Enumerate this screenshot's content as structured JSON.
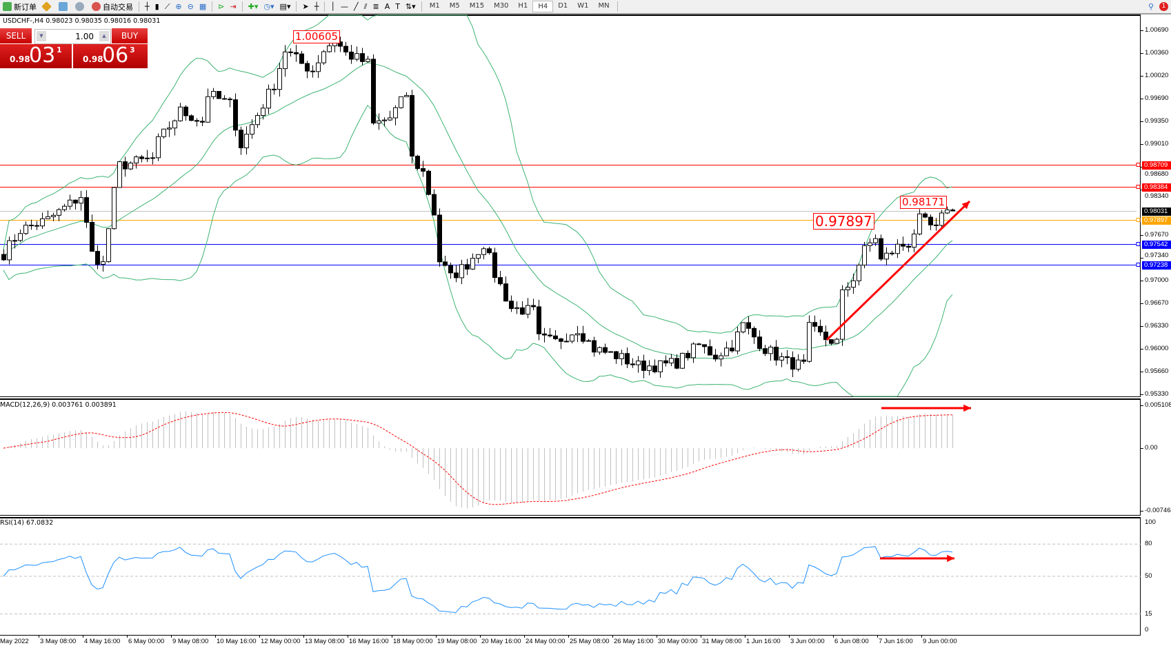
{
  "toolbar": {
    "new_order": "新订单",
    "auto_trading": "自动交易",
    "timeframes": [
      "M1",
      "M5",
      "M15",
      "M30",
      "H1",
      "H4",
      "D1",
      "W1",
      "MN"
    ],
    "active_timeframe": "H4",
    "notification_count": "1"
  },
  "chart": {
    "info_line": "USDCHF-,H4  0.98023 0.98035 0.98016 0.98031",
    "price_axis": [
      "1.00690",
      "1.00360",
      "1.00020",
      "0.99690",
      "0.99350",
      "0.99010",
      "0.98680",
      "0.98340",
      "0.97670",
      "0.97340",
      "0.97000",
      "0.96670",
      "0.96330",
      "0.96000",
      "0.95660",
      "0.95330"
    ],
    "price_range": [
      0.9533,
      1.0069
    ],
    "levels": [
      {
        "price": "0.98709",
        "color": "#ff0000"
      },
      {
        "price": "0.98384",
        "color": "#ff0000"
      },
      {
        "price": "0.98031",
        "color": "#000000",
        "line_color": "#c0c0c0"
      },
      {
        "price": "0.97897",
        "color": "#ffa500"
      },
      {
        "price": "0.97542",
        "color": "#0000ff"
      },
      {
        "price": "0.97238",
        "color": "#0000ff"
      }
    ],
    "price_labels": {
      "high": "1.00605",
      "recent_high": "0.98171",
      "marked": "0.97897"
    },
    "close_path": [
      [
        0,
        0.974
      ],
      [
        3,
        0.9775
      ],
      [
        8,
        0.979
      ],
      [
        14,
        0.9825
      ],
      [
        16,
        0.974
      ],
      [
        18,
        0.9725
      ],
      [
        20,
        0.983
      ],
      [
        21,
        0.987
      ],
      [
        27,
        0.988
      ],
      [
        28,
        0.9905
      ],
      [
        32,
        0.995
      ],
      [
        36,
        0.9935
      ],
      [
        37,
        0.9975
      ],
      [
        41,
        0.996
      ],
      [
        43,
        0.99
      ],
      [
        46,
        0.9945
      ],
      [
        49,
        0.999
      ],
      [
        51,
        1.004
      ],
      [
        54,
        1.002
      ],
      [
        56,
        1.001
      ],
      [
        58,
        1.004
      ],
      [
        60,
        1.0055
      ],
      [
        62,
        1.0035
      ],
      [
        66,
        1.002
      ],
      [
        67,
        0.993
      ],
      [
        70,
        0.994
      ],
      [
        73,
        0.9975
      ],
      [
        74,
        0.988
      ],
      [
        76,
        0.986
      ],
      [
        78,
        0.98
      ],
      [
        79,
        0.973
      ],
      [
        81,
        0.9705
      ],
      [
        84,
        0.9725
      ],
      [
        87,
        0.9755
      ],
      [
        89,
        0.971
      ],
      [
        92,
        0.966
      ],
      [
        96,
        0.9655
      ],
      [
        97,
        0.9615
      ],
      [
        100,
        0.961
      ],
      [
        104,
        0.963
      ],
      [
        107,
        0.96
      ],
      [
        111,
        0.959
      ],
      [
        115,
        0.9575
      ],
      [
        119,
        0.9575
      ],
      [
        122,
        0.958
      ],
      [
        126,
        0.9605
      ],
      [
        129,
        0.959
      ],
      [
        132,
        0.9605
      ],
      [
        134,
        0.9635
      ],
      [
        138,
        0.96
      ],
      [
        142,
        0.958
      ],
      [
        145,
        0.9575
      ],
      [
        146,
        0.963
      ],
      [
        149,
        0.9615
      ],
      [
        151,
        0.961
      ],
      [
        152,
        0.968
      ],
      [
        154,
        0.9705
      ],
      [
        156,
        0.9745
      ],
      [
        158,
        0.9765
      ],
      [
        159,
        0.973
      ],
      [
        162,
        0.975
      ],
      [
        164,
        0.9755
      ],
      [
        166,
        0.979
      ],
      [
        169,
        0.9775
      ],
      [
        171,
        0.981
      ],
      [
        172,
        0.98031
      ]
    ],
    "band_color": "#3cb371",
    "arrow_color": "#ff0000"
  },
  "macd": {
    "label": "MACD(12,26,9) 0.003761 0.003891",
    "axis": [
      "0.005108",
      "0.00",
      "-0.007464"
    ],
    "range": [
      -0.007464,
      0.005108
    ],
    "histogram_color": "#c0c0c0",
    "signal_color": "#ff0000"
  },
  "rsi": {
    "label": "RSI(14) 67.0832",
    "axis": [
      "100",
      "80",
      "50",
      "15",
      "0"
    ],
    "levels": [
      80,
      50,
      15
    ],
    "line_color": "#1e90ff"
  },
  "time_axis": [
    "May 2022",
    "3 May 08:00",
    "4 May 16:00",
    "6 May 00:00",
    "9 May 08:00",
    "10 May 16:00",
    "12 May 00:00",
    "13 May 08:00",
    "16 May 16:00",
    "18 May 00:00",
    "19 May 08:00",
    "20 May 16:00",
    "24 May 00:00",
    "25 May 08:00",
    "26 May 16:00",
    "30 May 00:00",
    "31 May 08:00",
    "1 Jun 16:00",
    "3 Jun 00:00",
    "6 Jun 08:00",
    "7 Jun 16:00",
    "9 Jun 00:00"
  ],
  "trade_panel": {
    "sell_label": "SELL",
    "buy_label": "BUY",
    "lot_value": "1.00",
    "sell_price_prefix": "0.98",
    "sell_price_big": "03",
    "sell_price_sup": "1",
    "buy_price_prefix": "0.98",
    "buy_price_big": "06",
    "buy_price_sup": "3"
  }
}
